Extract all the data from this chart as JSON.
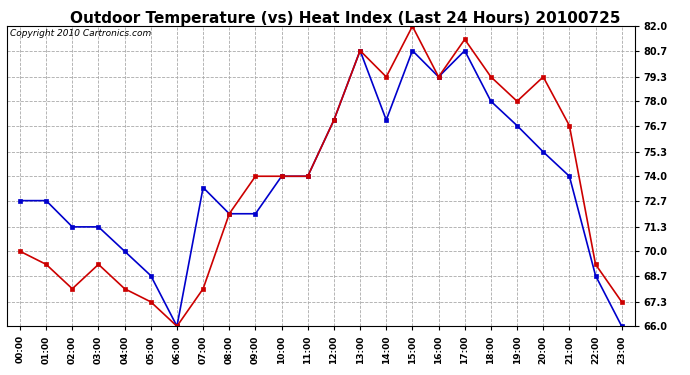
{
  "title": "Outdoor Temperature (vs) Heat Index (Last 24 Hours) 20100725",
  "copyright": "Copyright 2010 Cartronics.com",
  "x_labels": [
    "00:00",
    "01:00",
    "02:00",
    "03:00",
    "04:00",
    "05:00",
    "06:00",
    "07:00",
    "08:00",
    "09:00",
    "10:00",
    "11:00",
    "12:00",
    "13:00",
    "14:00",
    "15:00",
    "16:00",
    "17:00",
    "18:00",
    "19:00",
    "20:00",
    "21:00",
    "22:00",
    "23:00"
  ],
  "temp_blue": [
    72.7,
    72.7,
    71.3,
    71.3,
    70.0,
    68.7,
    66.0,
    73.4,
    72.0,
    72.0,
    74.0,
    74.0,
    77.0,
    80.7,
    77.0,
    80.7,
    79.3,
    80.7,
    78.0,
    76.7,
    75.3,
    74.0,
    68.7,
    66.0
  ],
  "heat_red": [
    70.0,
    69.3,
    68.0,
    69.3,
    68.0,
    67.3,
    66.0,
    68.0,
    72.0,
    74.0,
    74.0,
    74.0,
    77.0,
    80.7,
    79.3,
    82.0,
    79.3,
    81.3,
    79.3,
    78.0,
    79.3,
    76.7,
    69.3,
    67.3
  ],
  "ylim": [
    66.0,
    82.0
  ],
  "yticks": [
    66.0,
    67.3,
    68.7,
    70.0,
    71.3,
    72.7,
    74.0,
    75.3,
    76.7,
    78.0,
    79.3,
    80.7,
    82.0
  ],
  "blue_color": "#0000cc",
  "red_color": "#cc0000",
  "bg_color": "#ffffff",
  "grid_color": "#aaaaaa",
  "title_fontsize": 11,
  "copyright_fontsize": 6.5
}
